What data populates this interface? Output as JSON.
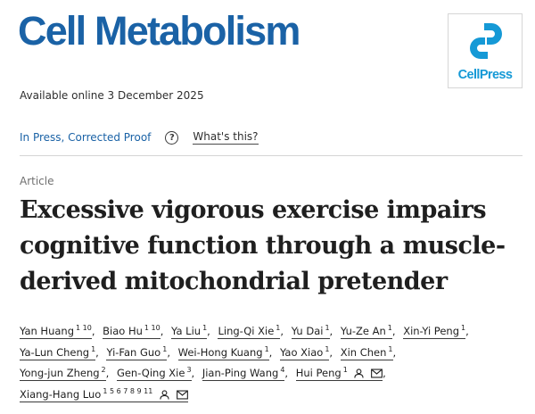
{
  "header": {
    "journal_name": "Cell Metabolism",
    "publisher_logo_text": "CellPress",
    "colors": {
      "journal_blue": "#1a62a6",
      "cellpress_blue": "#1599d6"
    }
  },
  "availability": "Available online 3 December 2025",
  "status": {
    "label": "In Press, Corrected Proof",
    "help_icon": "question-circle-icon",
    "whats_this": "What's this?"
  },
  "article": {
    "type": "Article",
    "title_lines": [
      "Excessive vigorous exercise impairs",
      "cognitive function through a muscle-",
      "derived mitochondrial pretender"
    ]
  },
  "authors": [
    {
      "name": "Yan Huang",
      "affil": "1 10"
    },
    {
      "name": "Biao Hu",
      "affil": "1 10"
    },
    {
      "name": "Ya Liu",
      "affil": "1"
    },
    {
      "name": "Ling-Qi Xie",
      "affil": "1"
    },
    {
      "name": "Yu Dai",
      "affil": "1"
    },
    {
      "name": "Yu-Ze An",
      "affil": "1"
    },
    {
      "name": "Xin-Yi Peng",
      "affil": "1"
    },
    {
      "name": "Ya-Lun Cheng",
      "affil": "1"
    },
    {
      "name": "Yi-Fan Guo",
      "affil": "1"
    },
    {
      "name": "Wei-Hong Kuang",
      "affil": "1"
    },
    {
      "name": "Yao Xiao",
      "affil": "1"
    },
    {
      "name": "Xin Chen",
      "affil": "1"
    },
    {
      "name": "Yong-jun Zheng",
      "affil": "2"
    },
    {
      "name": "Gen-Qing Xie",
      "affil": "3"
    },
    {
      "name": "Jian-Ping Wang",
      "affil": "4"
    },
    {
      "name": "Hui Peng",
      "affil": "1"
    },
    {
      "name": "Xiang-Hang Luo",
      "affil": "1 5 6 7 8 9 11"
    }
  ]
}
